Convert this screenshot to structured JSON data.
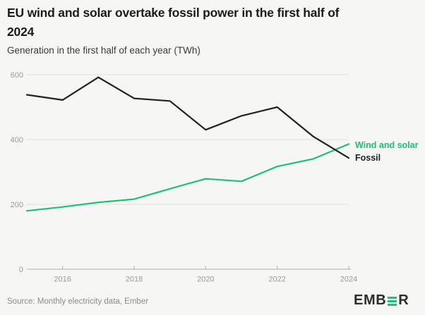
{
  "header": {
    "title_line1": "EU wind and solar overtake fossil power in the first half of",
    "title_line2": "2024",
    "subtitle": "Generation in the first half of each year (TWh)"
  },
  "chart_data": {
    "type": "line",
    "title": "EU wind and solar overtake fossil power in the first half of 2024",
    "subtitle": "Generation in the first half of each year (TWh)",
    "x": [
      2015,
      2016,
      2017,
      2018,
      2019,
      2020,
      2021,
      2022,
      2023,
      2024
    ],
    "series": [
      {
        "name": "Wind and solar",
        "color": "#1dc077",
        "values": [
          180,
          192,
          206,
          216,
          248,
          279,
          271,
          317,
          340,
          386
        ]
      },
      {
        "name": "Fossil",
        "color": "#222222",
        "values": [
          538,
          522,
          592,
          527,
          519,
          430,
          473,
          500,
          410,
          343
        ]
      }
    ],
    "xlabel": "",
    "ylabel": "TWh",
    "xlim": [
      2015,
      2024
    ],
    "ylim": [
      0,
      600
    ],
    "x_ticks": [
      2016,
      2018,
      2020,
      2022,
      2024
    ],
    "y_ticks": [
      0,
      200,
      400,
      600
    ],
    "grid": "horizontal",
    "legend_position": "right-of-line-ends"
  },
  "legend": {
    "wind_label": "Wind and solar",
    "fossil_label": "Fossil"
  },
  "footer": {
    "source": "Source: Monthly electricity data, Ember",
    "logo_prefix": "EMB",
    "logo_suffix": "R"
  },
  "colors": {
    "background": "#f6f6f4",
    "wind_green": "#1dc077",
    "fossil_black": "#222222",
    "gridline": "#e3e3e1",
    "axis_line": "#aeaeac",
    "tick_label": "#9b9b99",
    "title_text": "#1c1c1c",
    "subtitle_text": "#3a3a3a",
    "source_text": "#8c8c8c",
    "logo_text": "#2d2d2d"
  }
}
